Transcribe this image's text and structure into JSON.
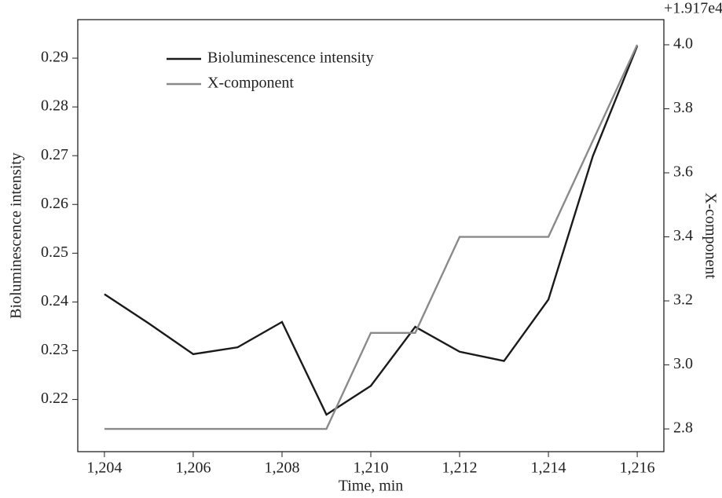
{
  "chart_data": {
    "type": "line",
    "xlabel": "Time, min",
    "ylabel": "Bioluminescence intensity",
    "y2label": "X-component",
    "y2_offset_label": "+1.917e4",
    "x": [
      1204,
      1205,
      1206,
      1207,
      1208,
      1209,
      1210,
      1211,
      1212,
      1213,
      1214,
      1215,
      1216
    ],
    "series": [
      {
        "name": "Bioluminescence intensity",
        "color": "#1a1a1a",
        "values": [
          0.2416,
          0.2356,
          0.2293,
          0.2307,
          0.2359,
          0.2169,
          0.2228,
          0.2349,
          0.2298,
          0.2279,
          0.2405,
          0.2699,
          0.2925
        ]
      },
      {
        "name": "X-component",
        "color": "#8a8a8a",
        "axis": "y2",
        "values": [
          2.8,
          2.8,
          2.8,
          2.8,
          2.8,
          2.8,
          3.1,
          3.1,
          3.4,
          3.4,
          3.4,
          3.7,
          4.0
        ]
      }
    ],
    "xlim": [
      1203.4,
      1216.6
    ],
    "xticks": [
      {
        "value": 1204,
        "label": "1,204"
      },
      {
        "value": 1206,
        "label": "1,206"
      },
      {
        "value": 1208,
        "label": "1,208"
      },
      {
        "value": 1210,
        "label": "1,210"
      },
      {
        "value": 1212,
        "label": "1,212"
      },
      {
        "value": 1214,
        "label": "1,214"
      },
      {
        "value": 1216,
        "label": "1,216"
      }
    ],
    "ylim": [
      0.2093,
      0.2979
    ],
    "yticks": [
      0.22,
      0.23,
      0.24,
      0.25,
      0.26,
      0.27,
      0.28,
      0.29
    ],
    "y2lim": [
      2.729,
      4.0785
    ],
    "y2ticks": [
      2.8,
      {
        "value": 3,
        "label": "3.0"
      },
      3.2,
      3.4,
      3.6,
      3.8,
      {
        "value": 4,
        "label": "4.0"
      }
    ],
    "legend": "upper left"
  }
}
